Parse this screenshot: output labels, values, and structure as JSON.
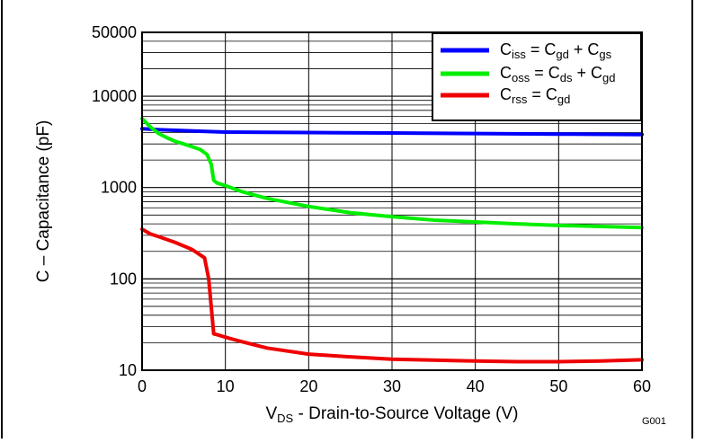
{
  "chart_data": {
    "type": "line",
    "xlabel_main": "V",
    "xlabel_sub": "DS",
    "xlabel_rest": " - Drain-to-Source Voltage (V)",
    "ylabel": "C – Capacitance  (pF)",
    "figure_code": "G001",
    "xlim": [
      0,
      60
    ],
    "ylim": [
      10,
      50000
    ],
    "y_scale": "log",
    "grid": true,
    "legend_position": "top-right",
    "x_ticks": [
      0,
      10,
      20,
      30,
      40,
      50,
      60
    ],
    "x_tick_labels": [
      "0",
      "10",
      "20",
      "30",
      "40",
      "50",
      "60"
    ],
    "y_ticks": [
      10,
      100,
      1000,
      10000,
      50000
    ],
    "y_tick_labels": [
      "10",
      "100",
      "1000",
      "10000",
      "50000"
    ],
    "colors": {
      "ciss": "#0000ff",
      "coss": "#00ee00",
      "crss": "#ee0000"
    },
    "series": [
      {
        "key": "ciss",
        "legend": [
          [
            "C",
            ""
          ],
          [
            "iss",
            "sub"
          ],
          [
            " = C",
            ""
          ],
          [
            "gd",
            "sub"
          ],
          [
            " + C",
            ""
          ],
          [
            "gs",
            "sub"
          ]
        ],
        "color": "#0000ff",
        "x": [
          0,
          2,
          5,
          8,
          10,
          20,
          30,
          40,
          50,
          60
        ],
        "y": [
          4400,
          4300,
          4200,
          4100,
          4050,
          4000,
          3950,
          3900,
          3850,
          3800
        ]
      },
      {
        "key": "coss",
        "legend": [
          [
            "C",
            ""
          ],
          [
            "oss",
            "sub"
          ],
          [
            " = C",
            ""
          ],
          [
            "ds",
            "sub"
          ],
          [
            " + C",
            ""
          ],
          [
            "gd",
            "sub"
          ]
        ],
        "color": "#00ee00",
        "x": [
          0,
          1,
          2,
          3,
          4,
          5,
          6,
          7,
          7.8,
          8.3,
          8.6,
          9,
          10,
          12,
          15,
          20,
          25,
          30,
          35,
          40,
          45,
          50,
          55,
          60
        ],
        "y": [
          5700,
          4600,
          3900,
          3500,
          3200,
          3000,
          2800,
          2600,
          2300,
          1800,
          1200,
          1120,
          1050,
          900,
          760,
          620,
          530,
          480,
          440,
          420,
          400,
          385,
          375,
          365
        ]
      },
      {
        "key": "crss",
        "legend": [
          [
            "C",
            ""
          ],
          [
            "rss",
            "sub"
          ],
          [
            " =  C",
            ""
          ],
          [
            "gd",
            "sub"
          ]
        ],
        "color": "#ee0000",
        "x": [
          0,
          1,
          2,
          4,
          6,
          7.5,
          8.0,
          8.3,
          8.6,
          9,
          10,
          12,
          15,
          20,
          25,
          30,
          40,
          45,
          50,
          55,
          60
        ],
        "y": [
          350,
          310,
          290,
          250,
          210,
          170,
          100,
          50,
          25,
          24.5,
          23,
          20.5,
          17.5,
          15,
          14,
          13.2,
          12.6,
          12.4,
          12.4,
          12.6,
          13
        ]
      }
    ]
  }
}
